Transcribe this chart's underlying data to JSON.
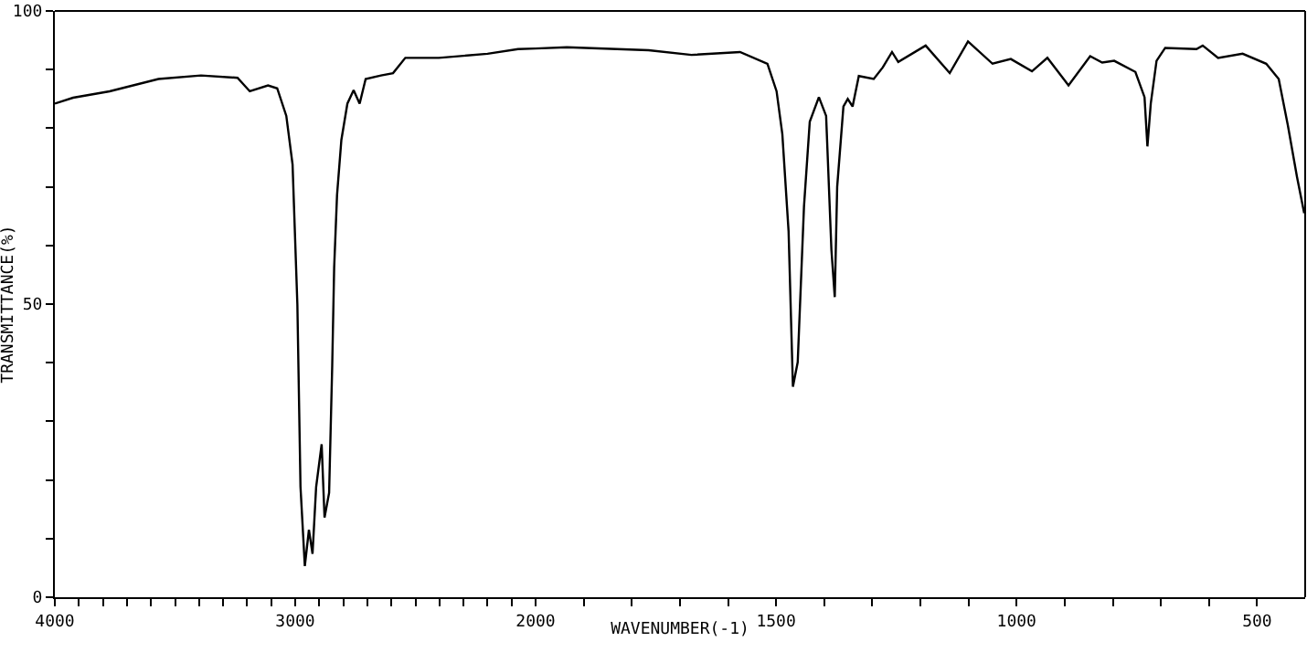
{
  "chart_data": [
    {
      "type": "line",
      "xlabel": "WAVENUMBER(-1)",
      "ylabel": "TRANSMITTANCE(%)",
      "x": [
        4000,
        3924,
        3772,
        3569,
        3392,
        3240,
        3189,
        3113,
        3075,
        3037,
        3011,
        2991,
        2978,
        2960,
        2943,
        2928,
        2913,
        2890,
        2878,
        2859,
        2846,
        2838,
        2826,
        2808,
        2783,
        2757,
        2732,
        2707,
        2643,
        2593,
        2542,
        2403,
        2200,
        2073,
        2000
      ],
      "series": [
        {
          "color": "#000000",
          "values": [
            84.2,
            85.2,
            86.3,
            88.4,
            89.0,
            88.6,
            86.3,
            87.3,
            86.8,
            82.1,
            73.8,
            49.9,
            18.8,
            5.3,
            11.5,
            7.4,
            18.8,
            26.1,
            13.6,
            17.8,
            39.6,
            56.2,
            68.6,
            78.0,
            84.2,
            86.5,
            84.2,
            88.4,
            89.0,
            89.4,
            92.0,
            92.0,
            92.7,
            93.5,
            93.6
          ]
        }
      ],
      "xlim": [
        4000,
        2000
      ],
      "xticks": [
        4000,
        {
          "value": 3900,
          "label": null
        },
        {
          "value": 3800,
          "label": null
        },
        {
          "value": 3700,
          "label": null
        },
        {
          "value": 3600,
          "label": null
        },
        {
          "value": 3500,
          "label": null
        },
        {
          "value": 3400,
          "label": null
        },
        {
          "value": 3300,
          "label": null
        },
        {
          "value": 3200,
          "label": null
        },
        {
          "value": 3100,
          "label": null
        },
        3000,
        {
          "value": 2900,
          "label": null
        },
        {
          "value": 2800,
          "label": null
        },
        {
          "value": 2700,
          "label": null
        },
        {
          "value": 2600,
          "label": null
        },
        {
          "value": 2500,
          "label": null
        },
        {
          "value": 2400,
          "label": null
        },
        {
          "value": 2300,
          "label": null
        },
        {
          "value": 2200,
          "label": null
        },
        {
          "value": 2100,
          "label": null
        }
      ],
      "ylim": [
        0,
        100
      ],
      "yticks": [
        0,
        {
          "value": 10,
          "label": null
        },
        {
          "value": 20,
          "label": null
        },
        {
          "value": 30,
          "label": null
        },
        {
          "value": 40,
          "label": null
        },
        50,
        {
          "value": 60,
          "label": null
        },
        {
          "value": 70,
          "label": null
        },
        {
          "value": 80,
          "label": null
        },
        {
          "value": 90,
          "label": null
        },
        100
      ],
      "grid": false,
      "marker": "none",
      "line_style": "solid"
    },
    {
      "type": "line",
      "x": [
        2000,
        1935,
        1765,
        1676,
        1575,
        1518,
        1499,
        1487,
        1474,
        1465,
        1455,
        1442,
        1430,
        1411,
        1396,
        1385,
        1378,
        1373,
        1360,
        1351,
        1341,
        1328,
        1297,
        1278,
        1259,
        1246,
        1189,
        1139,
        1101,
        1050,
        1012,
        968,
        936,
        892,
        847,
        822,
        797,
        753,
        734,
        728,
        721,
        709,
        691,
        626,
        613,
        581,
        530,
        481,
        455,
        436,
        417,
        402
      ],
      "series": [
        {
          "color": "#000000",
          "values": [
            93.6,
            93.8,
            93.3,
            92.5,
            93.0,
            91.0,
            86.3,
            79.0,
            62.4,
            35.9,
            40.1,
            66.6,
            81.1,
            85.3,
            82.1,
            59.3,
            51.2,
            70.0,
            83.7,
            85.0,
            83.7,
            88.9,
            88.4,
            90.4,
            93.0,
            91.3,
            94.1,
            89.4,
            94.8,
            91.0,
            91.8,
            89.7,
            92.0,
            87.3,
            92.3,
            91.2,
            91.5,
            89.6,
            85.3,
            76.9,
            84.2,
            91.5,
            93.7,
            93.5,
            94.1,
            92.0,
            92.7,
            91.0,
            88.4,
            80.5,
            71.7,
            65.5
          ]
        }
      ],
      "xlim": [
        2000,
        400
      ],
      "xticks": [
        2000,
        {
          "value": 1900,
          "label": null
        },
        {
          "value": 1800,
          "label": null
        },
        {
          "value": 1700,
          "label": null
        },
        {
          "value": 1600,
          "label": null
        },
        1500,
        {
          "value": 1400,
          "label": null
        },
        {
          "value": 1300,
          "label": null
        },
        {
          "value": 1200,
          "label": null
        },
        {
          "value": 1100,
          "label": null
        },
        1000,
        {
          "value": 900,
          "label": null
        },
        {
          "value": 800,
          "label": null
        },
        {
          "value": 700,
          "label": null
        },
        {
          "value": 600,
          "label": null
        },
        500
      ],
      "ylim": [
        0,
        100
      ],
      "yticks": [
        0,
        50,
        100
      ],
      "tick_labels": "x",
      "grid": false,
      "marker": "none",
      "line_style": "solid"
    }
  ]
}
